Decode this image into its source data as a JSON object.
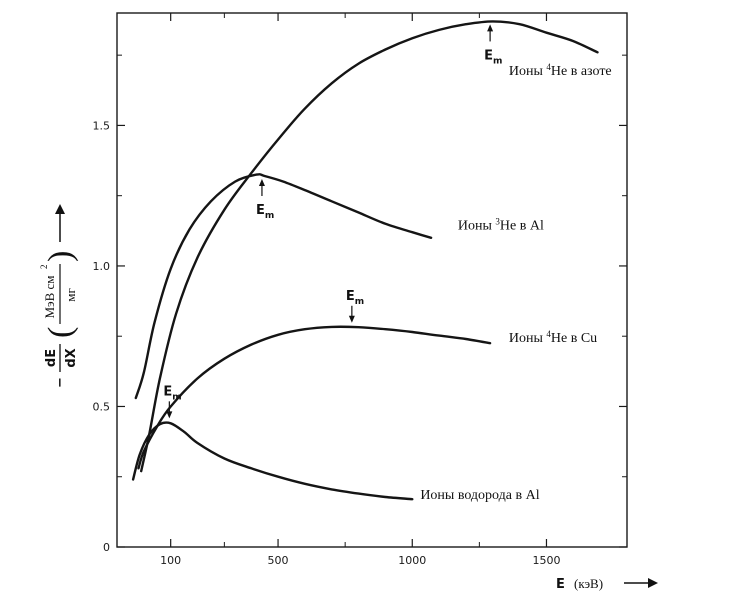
{
  "chart_data": {
    "type": "line",
    "title": "",
    "xlabel": {
      "symbol": "E",
      "unit": "(кэВ)"
    },
    "ylabel": {
      "minus": "−",
      "numerator": "dE",
      "denominator": "dX",
      "unit_numerator": "МэВ см",
      "unit_power": "2",
      "unit_denominator": "мг"
    },
    "xlim": [
      -100,
      1800
    ],
    "ylim": [
      0,
      1.9
    ],
    "x_ticks": [
      {
        "value": 100,
        "label": "100"
      },
      {
        "value": 500,
        "label": "500"
      },
      {
        "value": 1000,
        "label": "1000"
      },
      {
        "value": 1500,
        "label": "1500"
      }
    ],
    "y_ticks": [
      {
        "value": 0,
        "label": "0"
      },
      {
        "value": 0.5,
        "label": "0.5"
      },
      {
        "value": 1.0,
        "label": "1.0"
      },
      {
        "value": 1.5,
        "label": "1.5"
      }
    ],
    "y_minor_ticks": [
      0.25,
      0.75,
      1.25,
      1.75
    ],
    "x_minor_ticks": [
      300,
      750,
      1250
    ],
    "grid": false,
    "legend": "none",
    "series": [
      {
        "name": "Ионы 4He в азоте",
        "label_prefix": "Ионы ",
        "label_sup": "4",
        "label_suffix": "He в азоте",
        "label_at": {
          "x": 1360,
          "y": 1.68
        },
        "em": {
          "x": 1290,
          "y": 1.87,
          "direction": "up"
        },
        "x": [
          -10,
          20,
          60,
          120,
          200,
          300,
          400,
          500,
          600,
          700,
          800,
          900,
          1000,
          1100,
          1200,
          1300,
          1400,
          1500,
          1600,
          1690
        ],
        "y": [
          0.27,
          0.4,
          0.6,
          0.83,
          1.03,
          1.2,
          1.33,
          1.45,
          1.56,
          1.65,
          1.72,
          1.77,
          1.81,
          1.84,
          1.86,
          1.87,
          1.86,
          1.83,
          1.8,
          1.76
        ]
      },
      {
        "name": "Ионы 3He в Al",
        "label_prefix": "Ионы ",
        "label_sup": "3",
        "label_suffix": "He в Al",
        "label_at": {
          "x": 1170,
          "y": 1.13
        },
        "em": {
          "x": 440,
          "y": 1.32,
          "direction": "up"
        },
        "x": [
          -30,
          0,
          40,
          100,
          170,
          250,
          340,
          420,
          450,
          520,
          600,
          700,
          800,
          900,
          1000,
          1070
        ],
        "y": [
          0.53,
          0.62,
          0.8,
          0.99,
          1.13,
          1.23,
          1.3,
          1.325,
          1.32,
          1.3,
          1.27,
          1.23,
          1.19,
          1.15,
          1.12,
          1.1
        ]
      },
      {
        "name": "Ионы 4He в Cu",
        "label_prefix": "Ионы ",
        "label_sup": "4",
        "label_suffix": "He в Cu",
        "label_at": {
          "x": 1360,
          "y": 0.73
        },
        "em": {
          "x": 775,
          "y": 0.78,
          "direction": "down"
        },
        "x": [
          -20,
          0,
          50,
          100,
          200,
          300,
          400,
          500,
          600,
          700,
          800,
          900,
          1000,
          1100,
          1200,
          1290
        ],
        "y": [
          0.28,
          0.34,
          0.43,
          0.5,
          0.6,
          0.67,
          0.72,
          0.755,
          0.775,
          0.783,
          0.782,
          0.775,
          0.765,
          0.752,
          0.74,
          0.725
        ]
      },
      {
        "name": "Ионы водорода в Al",
        "label_prefix": "Ионы водорода в Al",
        "label_sup": "",
        "label_suffix": "",
        "label_at": {
          "x": 1030,
          "y": 0.17
        },
        "em": {
          "x": 95,
          "y": 0.44,
          "direction": "down"
        },
        "x": [
          -40,
          -15,
          20,
          60,
          100,
          150,
          200,
          300,
          400,
          500,
          600,
          700,
          800,
          900,
          1000
        ],
        "y": [
          0.24,
          0.33,
          0.4,
          0.437,
          0.44,
          0.41,
          0.37,
          0.315,
          0.28,
          0.25,
          0.225,
          0.205,
          0.19,
          0.178,
          0.17
        ]
      }
    ],
    "em_label": "E",
    "em_sub": "m"
  }
}
